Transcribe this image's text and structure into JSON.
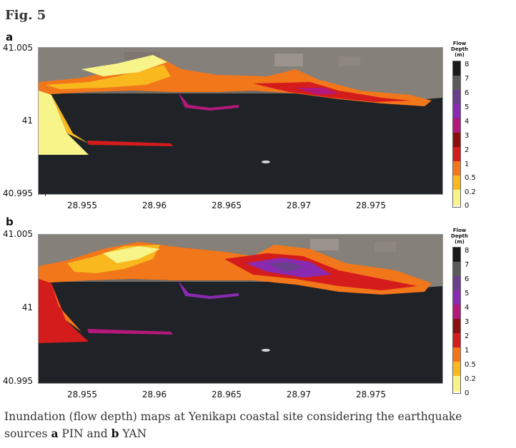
{
  "figure": {
    "title": "Fig. 5",
    "panels": [
      {
        "label": "a",
        "y_ticks": [
          "41.005",
          "41",
          "40.995"
        ],
        "x_ticks": [
          "28.955",
          "28.96",
          "28.965",
          "28.97",
          "28.975"
        ],
        "legend_title": "Flow Depth (m)",
        "legend_values": [
          "8",
          "7",
          "6",
          "5",
          "4",
          "3",
          "2",
          "1",
          "0.5",
          "0.2",
          "0"
        ]
      },
      {
        "label": "b",
        "y_ticks": [
          "41.005",
          "41",
          "40.995"
        ],
        "x_ticks": [
          "28.955",
          "28.96",
          "28.965",
          "28.97",
          "28.975"
        ],
        "legend_title": "Flow Depth (m)",
        "legend_values": [
          "8",
          "7",
          "6",
          "5",
          "4",
          "3",
          "2",
          "1",
          "0.5",
          "0.2",
          "0"
        ]
      }
    ],
    "legend_colors": [
      "#1a1a1a",
      "#5a5a5a",
      "#6a3f8c",
      "#8a2ab0",
      "#b3187a",
      "#8b0f0f",
      "#d41c1c",
      "#f2761a",
      "#f8b81e",
      "#f7f48a",
      "#ffffff"
    ],
    "caption": {
      "prefix": "Inundation (flow depth) maps at Yenikapı coastal site considering the earthquake sources",
      "a_label": "a",
      "a_source": "PIN",
      "joiner": "and",
      "b_label": "b",
      "b_source": "YAN"
    }
  }
}
